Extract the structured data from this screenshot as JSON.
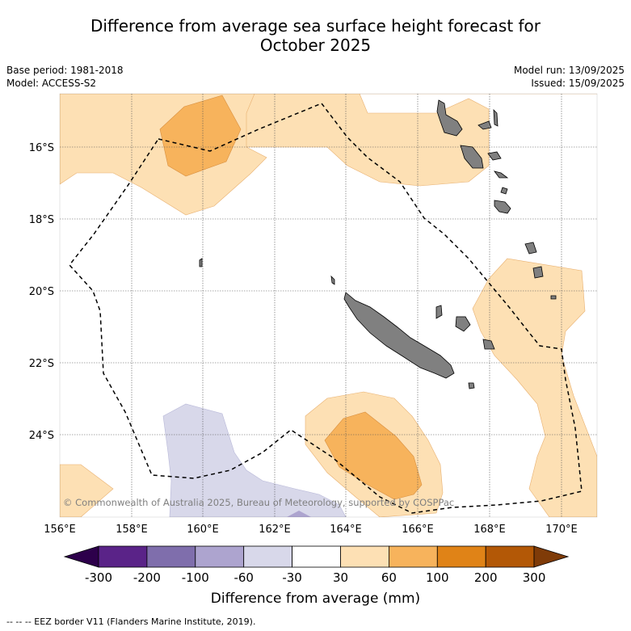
{
  "header": {
    "title_line1": "Difference from average sea surface height forecast for",
    "title_line2": "October 2025",
    "base_period": "Base period: 1981-2018",
    "model": "Model: ACCESS-S2",
    "model_run": "Model run: 13/09/2025",
    "issued": "Issued: 15/09/2025"
  },
  "map": {
    "lon_ticks": [
      "156°E",
      "158°E",
      "160°E",
      "162°E",
      "164°E",
      "166°E",
      "168°E",
      "170°E"
    ],
    "lat_ticks": [
      "16°S",
      "18°S",
      "20°S",
      "22°S",
      "24°S"
    ],
    "copyright": "© Commonwealth of Australia 2025, Bureau of Meteorology, supported by COSPPac",
    "land_color": "#808080"
  },
  "colorbar": {
    "labels": [
      "-300",
      "-200",
      "-100",
      "-60",
      "-30",
      "30",
      "60",
      "100",
      "200",
      "300"
    ],
    "colors": [
      "#5a2388",
      "#7f6eac",
      "#ada4cf",
      "#d8d8ea",
      "#ffffff",
      "#fde0b4",
      "#f7b35c",
      "#e08317",
      "#b35806"
    ],
    "extend_low_color": "#2d004b",
    "extend_high_color": "#7f3b08",
    "label": "Difference from average (mm)"
  },
  "footer": {
    "legend": "--  --  -- EEZ border V11 (Flanders Marine Institute, 2019)."
  }
}
